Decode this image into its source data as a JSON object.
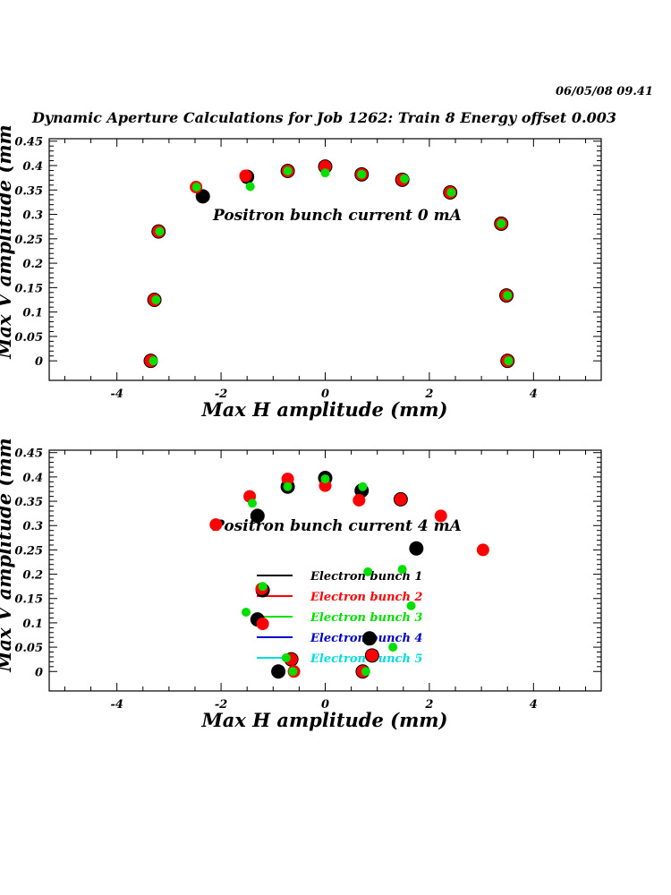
{
  "header": {
    "datestamp": "06/05/08   09.41",
    "title": "Dynamic Aperture Calculations for Job 1262:  Train 8   Energy offset  0.003"
  },
  "colors": {
    "black": "#000000",
    "red": "#ff0000",
    "green": "#00e000",
    "blue": "#0000cc",
    "cyan": "#00dddd"
  },
  "chart_data": [
    {
      "type": "scatter",
      "annotation": "Positron bunch current  0 mA",
      "xlabel": "Max H amplitude (mm)",
      "ylabel": "Max V amplitude (mm)",
      "xlim": [
        -5.3,
        5.3
      ],
      "ylim": [
        -0.04,
        0.455
      ],
      "xticks": [
        -4,
        -2,
        0,
        2,
        4
      ],
      "xtick_labels": [
        "-4",
        "-2",
        "0",
        "2",
        "4"
      ],
      "yticks": [
        0,
        0.05,
        0.1,
        0.15,
        0.2,
        0.25,
        0.3,
        0.35,
        0.4,
        0.45
      ],
      "ytick_labels": [
        "0",
        "0.05",
        "0.1",
        "0.15",
        "0.2",
        "0.25",
        "0.3",
        "0.35",
        "0.4",
        "0.45"
      ],
      "series": [
        {
          "color": "black",
          "marker": "large",
          "points": [
            [
              -3.35,
              0
            ],
            [
              -3.28,
              0.125
            ],
            [
              -3.2,
              0.265
            ],
            [
              -2.35,
              0.337
            ],
            [
              -1.5,
              0.377
            ],
            [
              -0.72,
              0.389
            ],
            [
              0,
              0.398
            ],
            [
              0.7,
              0.382
            ],
            [
              1.48,
              0.371
            ],
            [
              2.4,
              0.345
            ],
            [
              3.38,
              0.281
            ],
            [
              3.48,
              0.134
            ],
            [
              3.5,
              0
            ]
          ]
        },
        {
          "color": "red",
          "marker": "medium",
          "points": [
            [
              -3.35,
              0
            ],
            [
              -3.28,
              0.125
            ],
            [
              -3.2,
              0.265
            ],
            [
              -2.48,
              0.356
            ],
            [
              -1.53,
              0.379
            ],
            [
              -0.72,
              0.389
            ],
            [
              0,
              0.398
            ],
            [
              0.7,
              0.382
            ],
            [
              1.48,
              0.371
            ],
            [
              2.4,
              0.345
            ],
            [
              3.38,
              0.281
            ],
            [
              3.48,
              0.134
            ],
            [
              3.5,
              0
            ]
          ]
        },
        {
          "color": "green",
          "marker": "small",
          "points": [
            [
              -3.3,
              0
            ],
            [
              -3.25,
              0.125
            ],
            [
              -3.18,
              0.265
            ],
            [
              -2.47,
              0.356
            ],
            [
              -1.44,
              0.357
            ],
            [
              -0.72,
              0.389
            ],
            [
              0,
              0.385
            ],
            [
              0.7,
              0.382
            ],
            [
              1.52,
              0.373
            ],
            [
              2.42,
              0.345
            ],
            [
              3.38,
              0.281
            ],
            [
              3.5,
              0.134
            ],
            [
              3.52,
              0
            ]
          ]
        }
      ]
    },
    {
      "type": "scatter",
      "annotation": "Positron bunch current  4 mA",
      "xlabel": "Max H amplitude (mm)",
      "ylabel": "Max V amplitude (mm)",
      "xlim": [
        -5.3,
        5.3
      ],
      "ylim": [
        -0.04,
        0.455
      ],
      "xticks": [
        -4,
        -2,
        0,
        2,
        4
      ],
      "xtick_labels": [
        "-4",
        "-2",
        "0",
        "2",
        "4"
      ],
      "yticks": [
        0,
        0.05,
        0.1,
        0.15,
        0.2,
        0.25,
        0.3,
        0.35,
        0.4,
        0.45
      ],
      "ytick_labels": [
        "0",
        "0.05",
        "0.1",
        "0.15",
        "0.2",
        "0.25",
        "0.3",
        "0.35",
        "0.4",
        "0.45"
      ],
      "legend": {
        "placement": "center-left",
        "entries": [
          {
            "label": "Electron bunch 1",
            "color": "black"
          },
          {
            "label": "Electron bunch 2",
            "color": "red"
          },
          {
            "label": "Electron bunch 3",
            "color": "green"
          },
          {
            "label": "Electron bunch 4",
            "color": "blue"
          },
          {
            "label": "Electron bunch 5",
            "color": "cyan"
          }
        ]
      },
      "series": [
        {
          "color": "black",
          "marker": "large",
          "points": [
            [
              -0.9,
              0
            ],
            [
              -0.65,
              0.025
            ],
            [
              -1.3,
              0.107
            ],
            [
              -1.2,
              0.167
            ],
            [
              -1.3,
              0.32
            ],
            [
              -0.72,
              0.38
            ],
            [
              0,
              0.398
            ],
            [
              0.7,
              0.372
            ],
            [
              1.45,
              0.354
            ],
            [
              1.75,
              0.253
            ],
            [
              0.85,
              0.068
            ],
            [
              0.9,
              0.033
            ],
            [
              0.72,
              0
            ]
          ]
        },
        {
          "color": "red",
          "marker": "medium",
          "points": [
            [
              -0.6,
              0
            ],
            [
              -0.65,
              0.025
            ],
            [
              -1.2,
              0.098
            ],
            [
              -1.22,
              0.17
            ],
            [
              -2.1,
              0.302
            ],
            [
              -1.45,
              0.36
            ],
            [
              -0.72,
              0.396
            ],
            [
              0,
              0.382
            ],
            [
              0.65,
              0.352
            ],
            [
              1.45,
              0.354
            ],
            [
              2.22,
              0.32
            ],
            [
              3.03,
              0.25
            ],
            [
              0.9,
              0.033
            ],
            [
              0.72,
              0
            ]
          ]
        },
        {
          "color": "green",
          "marker": "small",
          "points": [
            [
              -0.62,
              0
            ],
            [
              -0.75,
              0.028
            ],
            [
              -1.52,
              0.122
            ],
            [
              -1.2,
              0.175
            ],
            [
              -1.4,
              0.346
            ],
            [
              -0.72,
              0.38
            ],
            [
              0,
              0.396
            ],
            [
              0.72,
              0.38
            ],
            [
              0.82,
              0.205
            ],
            [
              1.48,
              0.21
            ],
            [
              1.65,
              0.135
            ],
            [
              1.3,
              0.05
            ],
            [
              0.78,
              0
            ]
          ]
        }
      ]
    }
  ]
}
